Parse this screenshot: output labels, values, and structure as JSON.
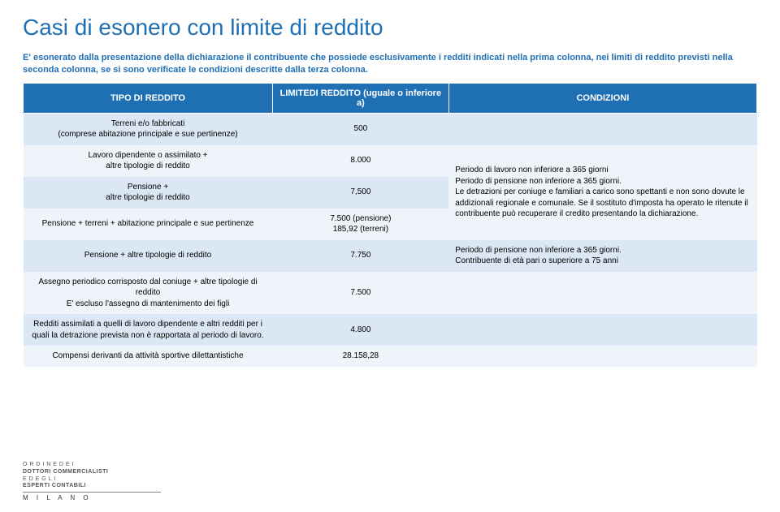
{
  "colors": {
    "title": "#1f6fb4",
    "intro": "#1f6fb4",
    "header_bg": "#1f6fb4",
    "row1_bg": "#dbe7f4",
    "row2_bg": "#eef4fa",
    "text": "#000000"
  },
  "title": "Casi di esonero con limite di reddito",
  "intro": "E' esonerato dalla presentazione della dichiarazione il contribuente che possiede esclusivamente i redditi indicati nella prima colonna, nei limiti di reddito previsti nella seconda colonna, se si sono verificate le condizioni descritte dalla terza colonna.",
  "table": {
    "headers": [
      "TIPO DI REDDITO",
      "LIMITEDI REDDITO\n(uguale o inferiore a)",
      "CONDIZIONI"
    ],
    "rows": [
      {
        "c1": "Terreni e/o fabbricati\n(comprese abitazione principale e sue pertinenze)",
        "c2": "500",
        "c3": "",
        "span3": false
      },
      {
        "c1": "Lavoro dipendente o assimilato +\naltre tipologie di reddito",
        "c2": "8.000",
        "c3": "Periodo di lavoro non inferiore a 365 giorni\nPeriodo di pensione non inferiore a 365 giorni.\nLe detrazioni per coniuge e familiari a carico sono spettanti e non sono dovute le addizionali regionale e comunale. Se il sostituto d'imposta ha operato le ritenute il contribuente può recuperare il credito presentando la dichiarazione.",
        "span3": 3
      },
      {
        "c1": "Pensione +\naltre tipologie di reddito",
        "c2": "7,500",
        "c3": "",
        "span3": false
      },
      {
        "c1": "Pensione + terreni + abitazione principale e sue pertinenze",
        "c2": "7.500 (pensione)\n185,92 (terreni)",
        "c3": "",
        "span3": false
      },
      {
        "c1": "Pensione + altre tipologie di reddito",
        "c2": "7.750",
        "c3": "Periodo di pensione non inferiore a 365 giorni.\nContribuente di età pari o superiore a 75 anni",
        "span3": 1
      },
      {
        "c1": "Assegno periodico corrisposto dal coniuge + altre tipologie di reddito\nE' escluso l'assegno di mantenimento dei figli",
        "c2": "7.500",
        "c3": "",
        "span3": 1
      },
      {
        "c1": "Redditi assimilati a quelli di lavoro dipendente e altri redditi per i quali la detrazione prevista non è rapportata al periodo di lavoro.",
        "c2": "4.800",
        "c3": "",
        "span3": 1
      },
      {
        "c1": "Compensi derivanti da attività sportive dilettantistiche",
        "c2": "28.158,28",
        "c3": "",
        "span3": 1
      }
    ]
  },
  "footer": {
    "line1": "O R D I N E   D E I",
    "line2": "DOTTORI COMMERCIALISTI",
    "line3": "E   D E G L I",
    "line4": "ESPERTI CONTABILI",
    "milano": "M I L A N O"
  }
}
